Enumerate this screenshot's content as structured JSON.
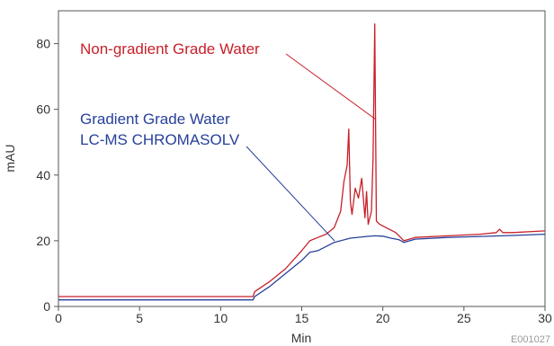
{
  "chart_data": {
    "type": "line",
    "title": "",
    "xlabel": "Min",
    "ylabel": "mAU",
    "xlim": [
      0,
      30
    ],
    "ylim": [
      0,
      90
    ],
    "x_ticks": [
      "0",
      "5",
      "10",
      "15",
      "20",
      "25",
      "30"
    ],
    "y_ticks": [
      "0",
      "20",
      "40",
      "60",
      "80"
    ],
    "grid": false,
    "legend": "none",
    "annotations": {
      "red_line1": "Non-gradient Grade Water",
      "blue_line1": "Gradient Grade Water",
      "blue_line2": "LC-MS CHROMASOLV"
    },
    "figure_code": "E001027",
    "colors": {
      "red_series": "#c8202a",
      "blue_series": "#27409a",
      "axis": "#555555"
    },
    "series": [
      {
        "color": "#c8202a",
        "x": [
          0,
          12,
          12.1,
          13,
          14,
          15,
          15.5,
          16,
          16.5,
          17,
          17.4,
          17.6,
          17.8,
          17.9,
          18.0,
          18.1,
          18.3,
          18.5,
          18.7,
          18.9,
          19.0,
          19.1,
          19.3,
          19.4,
          19.5,
          19.6,
          19.8,
          20.2,
          20.8,
          21.3,
          22,
          24,
          26,
          27,
          27.2,
          27.4,
          28,
          30
        ],
        "y": [
          3,
          3,
          4.5,
          7.5,
          11.5,
          17,
          20,
          21,
          22,
          24,
          29,
          38,
          43,
          54,
          32,
          28,
          36,
          33,
          39,
          27,
          35,
          25,
          29,
          45,
          86,
          26,
          25,
          24,
          22.5,
          20,
          21,
          21.5,
          22,
          22.5,
          23.5,
          22.5,
          22.5,
          23
        ]
      },
      {
        "color": "#27409a",
        "x": [
          0,
          12,
          12.1,
          13,
          14,
          15,
          15.5,
          16,
          17,
          18,
          19,
          19.5,
          20,
          20.5,
          21,
          21.3,
          22,
          24,
          26,
          28,
          30
        ],
        "y": [
          2,
          2,
          3,
          6,
          10,
          14,
          16.5,
          17,
          19.5,
          20.8,
          21.3,
          21.5,
          21.4,
          20.8,
          20.3,
          19.5,
          20.5,
          21,
          21.3,
          21.6,
          22
        ]
      }
    ]
  }
}
